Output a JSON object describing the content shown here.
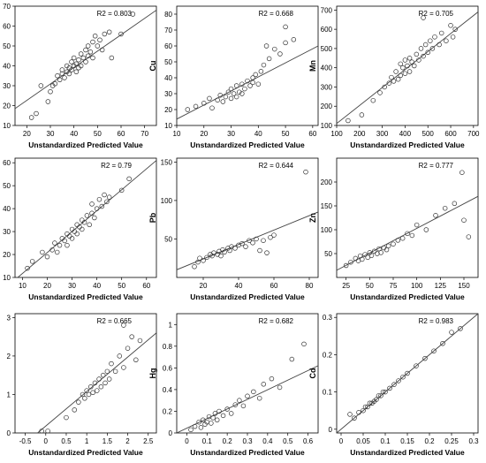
{
  "chart_data": [
    {
      "type": "scatter",
      "ylabel": "Cr",
      "xlabel": "Unstandardized Predicted Value",
      "annotation": "R2 = 0.803",
      "xlim": [
        15,
        75
      ],
      "ylim": [
        10,
        70
      ],
      "xticks": [
        20,
        30,
        40,
        50,
        60,
        70
      ],
      "yticks": [
        10,
        20,
        30,
        40,
        50,
        60,
        70
      ],
      "fit": [
        [
          15,
          18.5
        ],
        [
          75,
          68
        ]
      ],
      "points": [
        [
          22,
          14
        ],
        [
          24,
          16
        ],
        [
          26,
          30
        ],
        [
          29,
          22
        ],
        [
          30,
          27
        ],
        [
          31,
          30
        ],
        [
          32,
          31
        ],
        [
          33,
          35
        ],
        [
          34,
          33
        ],
        [
          35,
          36
        ],
        [
          35,
          38
        ],
        [
          36,
          34
        ],
        [
          37,
          37
        ],
        [
          37,
          40
        ],
        [
          38,
          36
        ],
        [
          38,
          39
        ],
        [
          39,
          42
        ],
        [
          39,
          38
        ],
        [
          40,
          40
        ],
        [
          40,
          44
        ],
        [
          41,
          37
        ],
        [
          41,
          41
        ],
        [
          42,
          43
        ],
        [
          42,
          39
        ],
        [
          43,
          46
        ],
        [
          43,
          40
        ],
        [
          44,
          44
        ],
        [
          45,
          48
        ],
        [
          45,
          42
        ],
        [
          46,
          50
        ],
        [
          46,
          45
        ],
        [
          47,
          47
        ],
        [
          48,
          52
        ],
        [
          48,
          44
        ],
        [
          49,
          55
        ],
        [
          50,
          50
        ],
        [
          51,
          53
        ],
        [
          52,
          48
        ],
        [
          53,
          56
        ],
        [
          55,
          57
        ],
        [
          56,
          44
        ],
        [
          60,
          56
        ],
        [
          65,
          66
        ]
      ]
    },
    {
      "type": "scatter",
      "ylabel": "Cu",
      "xlabel": "Unstandardized Predicted Value",
      "annotation": "R2 = 0.668",
      "xlim": [
        10,
        62
      ],
      "ylim": [
        10,
        85
      ],
      "xticks": [
        10,
        20,
        30,
        40,
        50,
        60
      ],
      "yticks": [
        10,
        20,
        30,
        40,
        50,
        60,
        70,
        80
      ],
      "fit": [
        [
          10,
          14
        ],
        [
          62,
          60
        ]
      ],
      "points": [
        [
          14,
          20
        ],
        [
          17,
          22
        ],
        [
          20,
          24
        ],
        [
          22,
          27
        ],
        [
          23,
          21
        ],
        [
          25,
          26
        ],
        [
          26,
          29
        ],
        [
          27,
          25
        ],
        [
          28,
          28
        ],
        [
          29,
          31
        ],
        [
          30,
          27
        ],
        [
          30,
          33
        ],
        [
          31,
          30
        ],
        [
          32,
          28
        ],
        [
          32,
          35
        ],
        [
          33,
          31
        ],
        [
          34,
          30
        ],
        [
          34,
          36
        ],
        [
          35,
          33
        ],
        [
          36,
          38
        ],
        [
          37,
          35
        ],
        [
          38,
          37
        ],
        [
          38,
          40
        ],
        [
          39,
          42
        ],
        [
          40,
          36
        ],
        [
          41,
          44
        ],
        [
          42,
          48
        ],
        [
          43,
          60
        ],
        [
          44,
          52
        ],
        [
          46,
          58
        ],
        [
          48,
          55
        ],
        [
          50,
          62
        ],
        [
          50,
          72
        ],
        [
          53,
          64
        ]
      ]
    },
    {
      "type": "scatter",
      "ylabel": "Mn",
      "xlabel": "Unstandardized Predicted Value",
      "annotation": "R2 = 0.705",
      "xlim": [
        100,
        720
      ],
      "ylim": [
        100,
        720
      ],
      "xticks": [
        100,
        200,
        300,
        400,
        500,
        600,
        700
      ],
      "yticks": [
        100,
        200,
        300,
        400,
        500,
        600,
        700
      ],
      "fit": [
        [
          100,
          110
        ],
        [
          720,
          690
        ]
      ],
      "points": [
        [
          150,
          125
        ],
        [
          210,
          155
        ],
        [
          260,
          230
        ],
        [
          290,
          270
        ],
        [
          310,
          300
        ],
        [
          330,
          320
        ],
        [
          340,
          350
        ],
        [
          350,
          330
        ],
        [
          360,
          380
        ],
        [
          370,
          340
        ],
        [
          380,
          360
        ],
        [
          380,
          420
        ],
        [
          390,
          400
        ],
        [
          400,
          370
        ],
        [
          400,
          440
        ],
        [
          410,
          410
        ],
        [
          420,
          380
        ],
        [
          420,
          450
        ],
        [
          430,
          430
        ],
        [
          440,
          410
        ],
        [
          450,
          470
        ],
        [
          460,
          440
        ],
        [
          470,
          500
        ],
        [
          480,
          460
        ],
        [
          490,
          520
        ],
        [
          500,
          480
        ],
        [
          510,
          540
        ],
        [
          520,
          500
        ],
        [
          530,
          560
        ],
        [
          550,
          520
        ],
        [
          560,
          580
        ],
        [
          580,
          540
        ],
        [
          600,
          620
        ],
        [
          610,
          560
        ],
        [
          620,
          600
        ],
        [
          480,
          660
        ]
      ]
    },
    {
      "type": "scatter",
      "ylabel": "Ni",
      "xlabel": "Unstandardized Predicted Value",
      "annotation": "R2 = 0.79",
      "xlim": [
        7,
        64
      ],
      "ylim": [
        10,
        62
      ],
      "xticks": [
        10,
        20,
        30,
        40,
        50,
        60
      ],
      "yticks": [
        10,
        20,
        30,
        40,
        50,
        60
      ],
      "fit": [
        [
          7,
          9
        ],
        [
          64,
          61
        ]
      ],
      "points": [
        [
          12,
          14
        ],
        [
          14,
          17
        ],
        [
          18,
          21
        ],
        [
          20,
          19
        ],
        [
          22,
          22
        ],
        [
          23,
          25
        ],
        [
          24,
          21
        ],
        [
          25,
          24
        ],
        [
          26,
          27
        ],
        [
          27,
          26
        ],
        [
          28,
          29
        ],
        [
          28,
          24
        ],
        [
          29,
          28
        ],
        [
          30,
          31
        ],
        [
          30,
          27
        ],
        [
          31,
          30
        ],
        [
          32,
          33
        ],
        [
          32,
          29
        ],
        [
          33,
          32
        ],
        [
          34,
          35
        ],
        [
          34,
          31
        ],
        [
          35,
          34
        ],
        [
          36,
          37
        ],
        [
          37,
          33
        ],
        [
          38,
          38
        ],
        [
          38,
          42
        ],
        [
          39,
          36
        ],
        [
          40,
          40
        ],
        [
          41,
          44
        ],
        [
          42,
          41
        ],
        [
          43,
          46
        ],
        [
          44,
          43
        ],
        [
          45,
          45
        ],
        [
          50,
          48
        ],
        [
          53,
          53
        ]
      ]
    },
    {
      "type": "scatter",
      "ylabel": "Pb",
      "xlabel": "Unstandardized Predicted Value",
      "annotation": "R2 = 0.644",
      "xlim": [
        5,
        85
      ],
      "ylim": [
        0,
        155
      ],
      "xticks": [
        20,
        40,
        60,
        80
      ],
      "yticks": [
        50,
        100,
        150
      ],
      "fit": [
        [
          5,
          10
        ],
        [
          85,
          85
        ]
      ],
      "points": [
        [
          15,
          14
        ],
        [
          17,
          20
        ],
        [
          18,
          25
        ],
        [
          20,
          22
        ],
        [
          22,
          26
        ],
        [
          24,
          30
        ],
        [
          25,
          28
        ],
        [
          26,
          32
        ],
        [
          28,
          30
        ],
        [
          29,
          34
        ],
        [
          30,
          28
        ],
        [
          31,
          36
        ],
        [
          32,
          33
        ],
        [
          34,
          38
        ],
        [
          35,
          35
        ],
        [
          36,
          40
        ],
        [
          38,
          38
        ],
        [
          40,
          42
        ],
        [
          42,
          44
        ],
        [
          44,
          40
        ],
        [
          46,
          48
        ],
        [
          48,
          45
        ],
        [
          50,
          50
        ],
        [
          52,
          35
        ],
        [
          54,
          48
        ],
        [
          56,
          32
        ],
        [
          58,
          52
        ],
        [
          60,
          55
        ],
        [
          78,
          137
        ]
      ]
    },
    {
      "type": "scatter",
      "ylabel": "Zn",
      "xlabel": "Unstandardized Predicted Value",
      "annotation": "R2 = 0.777",
      "xlim": [
        15,
        165
      ],
      "ylim": [
        0,
        250
      ],
      "xticks": [
        25,
        50,
        75,
        100,
        125,
        150
      ],
      "yticks": [
        50,
        100,
        150,
        200
      ],
      "fit": [
        [
          15,
          15
        ],
        [
          165,
          170
        ]
      ],
      "points": [
        [
          25,
          25
        ],
        [
          30,
          32
        ],
        [
          35,
          40
        ],
        [
          38,
          35
        ],
        [
          40,
          45
        ],
        [
          42,
          38
        ],
        [
          45,
          48
        ],
        [
          48,
          42
        ],
        [
          50,
          52
        ],
        [
          52,
          46
        ],
        [
          55,
          55
        ],
        [
          58,
          50
        ],
        [
          60,
          60
        ],
        [
          62,
          52
        ],
        [
          65,
          62
        ],
        [
          68,
          58
        ],
        [
          70,
          66
        ],
        [
          75,
          70
        ],
        [
          80,
          78
        ],
        [
          85,
          82
        ],
        [
          90,
          92
        ],
        [
          95,
          88
        ],
        [
          100,
          110
        ],
        [
          110,
          100
        ],
        [
          120,
          130
        ],
        [
          130,
          145
        ],
        [
          140,
          155
        ],
        [
          148,
          220
        ],
        [
          150,
          120
        ],
        [
          155,
          85
        ]
      ]
    },
    {
      "type": "scatter",
      "ylabel": "As",
      "xlabel": "Unstandardized Predicted Value",
      "annotation": "R2 = 0.665",
      "xlim": [
        -0.75,
        2.7
      ],
      "ylim": [
        0,
        3.1
      ],
      "xticks": [
        -0.5,
        0.0,
        0.5,
        1.0,
        1.5,
        2.0,
        2.5
      ],
      "yticks": [
        0.0,
        1.0,
        2.0,
        3.0
      ],
      "fit": [
        [
          -0.2,
          0.0
        ],
        [
          2.7,
          2.6
        ]
      ],
      "points": [
        [
          -0.1,
          0.05
        ],
        [
          0.05,
          0.05
        ],
        [
          0.5,
          0.4
        ],
        [
          0.7,
          0.6
        ],
        [
          0.8,
          0.8
        ],
        [
          0.9,
          1.0
        ],
        [
          0.95,
          0.9
        ],
        [
          1.0,
          1.1
        ],
        [
          1.05,
          1.0
        ],
        [
          1.1,
          1.2
        ],
        [
          1.15,
          1.05
        ],
        [
          1.2,
          1.3
        ],
        [
          1.25,
          1.1
        ],
        [
          1.3,
          1.4
        ],
        [
          1.35,
          1.2
        ],
        [
          1.4,
          1.5
        ],
        [
          1.45,
          1.3
        ],
        [
          1.5,
          1.6
        ],
        [
          1.55,
          1.4
        ],
        [
          1.6,
          1.8
        ],
        [
          1.7,
          1.6
        ],
        [
          1.8,
          2.0
        ],
        [
          1.9,
          1.7
        ],
        [
          2.0,
          2.2
        ],
        [
          2.1,
          2.5
        ],
        [
          2.2,
          1.9
        ],
        [
          2.3,
          2.4
        ],
        [
          1.9,
          2.8
        ]
      ]
    },
    {
      "type": "scatter",
      "ylabel": "Hg",
      "xlabel": "Unstandardized Predicted Value",
      "annotation": "R2 = 0.682",
      "xlim": [
        -0.05,
        0.65
      ],
      "ylim": [
        0,
        1.1
      ],
      "xticks": [
        0.0,
        0.1,
        0.2,
        0.3,
        0.4,
        0.5,
        0.6
      ],
      "yticks": [
        0.0,
        0.2,
        0.4,
        0.6,
        0.8,
        1.0
      ],
      "fit": [
        [
          -0.05,
          0.0
        ],
        [
          0.65,
          0.62
        ]
      ],
      "points": [
        [
          0.02,
          0.03
        ],
        [
          0.04,
          0.06
        ],
        [
          0.06,
          0.1
        ],
        [
          0.07,
          0.05
        ],
        [
          0.08,
          0.12
        ],
        [
          0.09,
          0.08
        ],
        [
          0.1,
          0.1
        ],
        [
          0.11,
          0.15
        ],
        [
          0.12,
          0.09
        ],
        [
          0.13,
          0.14
        ],
        [
          0.14,
          0.18
        ],
        [
          0.15,
          0.12
        ],
        [
          0.16,
          0.2
        ],
        [
          0.18,
          0.16
        ],
        [
          0.2,
          0.22
        ],
        [
          0.22,
          0.18
        ],
        [
          0.24,
          0.26
        ],
        [
          0.26,
          0.3
        ],
        [
          0.28,
          0.25
        ],
        [
          0.3,
          0.34
        ],
        [
          0.33,
          0.38
        ],
        [
          0.36,
          0.32
        ],
        [
          0.38,
          0.45
        ],
        [
          0.42,
          0.5
        ],
        [
          0.46,
          0.42
        ],
        [
          0.52,
          0.68
        ],
        [
          0.58,
          0.82
        ]
      ]
    },
    {
      "type": "scatter",
      "ylabel": "Cd",
      "xlabel": "Unstandardized Predicted Value",
      "annotation": "R2 = 0.983",
      "xlim": [
        -0.01,
        0.31
      ],
      "ylim": [
        -0.01,
        0.31
      ],
      "xticks": [
        0.0,
        0.05,
        0.1,
        0.15,
        0.2,
        0.25,
        0.3
      ],
      "yticks": [
        0.0,
        0.1,
        0.2,
        0.3
      ],
      "fit": [
        [
          -0.01,
          -0.01
        ],
        [
          0.31,
          0.31
        ]
      ],
      "points": [
        [
          0.02,
          0.04
        ],
        [
          0.03,
          0.03
        ],
        [
          0.04,
          0.045
        ],
        [
          0.05,
          0.05
        ],
        [
          0.055,
          0.06
        ],
        [
          0.06,
          0.06
        ],
        [
          0.065,
          0.07
        ],
        [
          0.07,
          0.07
        ],
        [
          0.075,
          0.075
        ],
        [
          0.08,
          0.08
        ],
        [
          0.085,
          0.09
        ],
        [
          0.09,
          0.09
        ],
        [
          0.095,
          0.1
        ],
        [
          0.1,
          0.1
        ],
        [
          0.11,
          0.11
        ],
        [
          0.12,
          0.12
        ],
        [
          0.13,
          0.13
        ],
        [
          0.14,
          0.14
        ],
        [
          0.15,
          0.15
        ],
        [
          0.17,
          0.17
        ],
        [
          0.19,
          0.19
        ],
        [
          0.21,
          0.21
        ],
        [
          0.23,
          0.23
        ],
        [
          0.25,
          0.26
        ],
        [
          0.27,
          0.27
        ]
      ]
    }
  ]
}
